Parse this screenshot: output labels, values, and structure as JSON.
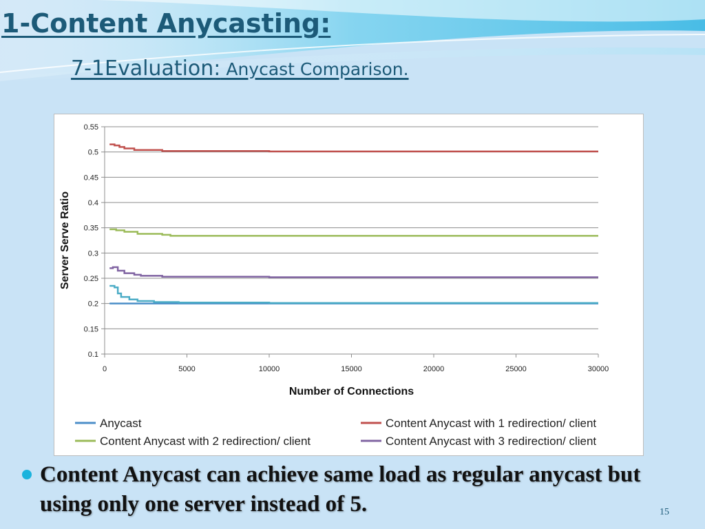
{
  "slide": {
    "title": "1-Content Anycasting:",
    "subtitle_main": "7-1Evaluation:",
    "subtitle_rest": " Anycast Comparison.",
    "bullet": "Content Anycast can achieve same load as regular anycast  but using only one server instead of 5.",
    "page_number": "15",
    "colors": {
      "title": "#1c5a78",
      "bullet_dot": "#1ab3dd",
      "background": "#c9e3f6"
    }
  },
  "chart_data": {
    "type": "line",
    "title": "",
    "xlabel": "Number of Connections",
    "ylabel": "Server Serve Ratio",
    "xlim": [
      0,
      30000
    ],
    "ylim": [
      0.1,
      0.55
    ],
    "x_ticks": [
      "0",
      "5000",
      "10000",
      "15000",
      "20000",
      "25000",
      "30000"
    ],
    "y_ticks": [
      "0.1",
      "0.15",
      "0.2",
      "0.25",
      "0.3",
      "0.35",
      "0.4",
      "0.45",
      "0.5",
      "0.55"
    ],
    "grid": "horizontal",
    "legend_position": "bottom",
    "series": [
      {
        "name": "Anycast",
        "color": "#4b8ec8",
        "points": [
          [
            300,
            0.2
          ],
          [
            1000,
            0.2
          ],
          [
            2000,
            0.2
          ],
          [
            3000,
            0.2
          ],
          [
            4500,
            0.2
          ],
          [
            10000,
            0.2
          ],
          [
            20000,
            0.2
          ],
          [
            30000,
            0.2
          ]
        ]
      },
      {
        "name": "Content Anycast with 1 redirection/ client",
        "color": "#c0504d",
        "points": [
          [
            300,
            0.515
          ],
          [
            600,
            0.513
          ],
          [
            900,
            0.51
          ],
          [
            1200,
            0.507
          ],
          [
            1800,
            0.504
          ],
          [
            3500,
            0.502
          ],
          [
            10000,
            0.501
          ],
          [
            30000,
            0.501
          ]
        ]
      },
      {
        "name": "Content Anycast with 2 redirection/ client",
        "color": "#9bbb59",
        "points": [
          [
            300,
            0.347
          ],
          [
            700,
            0.345
          ],
          [
            1200,
            0.342
          ],
          [
            2000,
            0.338
          ],
          [
            3500,
            0.336
          ],
          [
            4000,
            0.334
          ],
          [
            15000,
            0.334
          ],
          [
            30000,
            0.334
          ]
        ]
      },
      {
        "name": "Content Anycast with 3 redirection/ client",
        "color": "#8064a2",
        "points": [
          [
            300,
            0.27
          ],
          [
            500,
            0.272
          ],
          [
            800,
            0.265
          ],
          [
            1200,
            0.26
          ],
          [
            1800,
            0.257
          ],
          [
            2200,
            0.255
          ],
          [
            3500,
            0.253
          ],
          [
            10000,
            0.252
          ],
          [
            30000,
            0.252
          ]
        ]
      },
      {
        "name": "",
        "color": "#4bacc6",
        "points": [
          [
            300,
            0.235
          ],
          [
            600,
            0.232
          ],
          [
            800,
            0.22
          ],
          [
            1000,
            0.213
          ],
          [
            1500,
            0.208
          ],
          [
            2000,
            0.205
          ],
          [
            3000,
            0.203
          ],
          [
            4500,
            0.202
          ],
          [
            10000,
            0.201
          ],
          [
            30000,
            0.201
          ]
        ]
      }
    ]
  }
}
